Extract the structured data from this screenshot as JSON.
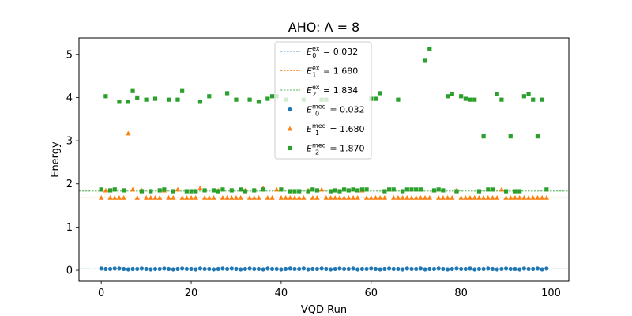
{
  "chart_data": {
    "type": "scatter",
    "title": "AHO: Λ = 8",
    "xlabel": "VQD Run",
    "ylabel": "Energy",
    "xlim": [
      -4.95,
      103.95
    ],
    "ylim": [
      -0.255,
      5.38
    ],
    "xticks": [
      0,
      20,
      40,
      60,
      80,
      100
    ],
    "yticks": [
      0,
      1,
      2,
      3,
      4,
      5
    ],
    "grid": false,
    "legend_position": "top-center",
    "reference_lines": [
      {
        "name": "E0ex",
        "base": "E",
        "sub": "0",
        "sup": "ex",
        "label_value": "= 0.032",
        "y": 0.032,
        "color": "#1f77b4",
        "style": "dashed"
      },
      {
        "name": "E1ex",
        "base": "E",
        "sub": "1",
        "sup": "ex",
        "label_value": "= 1.680",
        "y": 1.68,
        "color": "#ff7f0e",
        "style": "dashed"
      },
      {
        "name": "E2ex",
        "base": "E",
        "sub": "2",
        "sup": "ex",
        "label_value": "= 1.834",
        "y": 1.834,
        "color": "#2ca02c",
        "style": "dashed"
      }
    ],
    "series": [
      {
        "name": "E0med",
        "base": "E",
        "sub": "0",
        "sup": "med",
        "label_value": "= 0.032",
        "marker": "circle",
        "color": "#1f77b4",
        "x": [
          0,
          1,
          2,
          3,
          4,
          5,
          6,
          7,
          8,
          9,
          10,
          11,
          12,
          13,
          14,
          15,
          16,
          17,
          18,
          19,
          20,
          21,
          22,
          23,
          24,
          25,
          26,
          27,
          28,
          29,
          30,
          31,
          32,
          33,
          34,
          35,
          36,
          37,
          38,
          39,
          40,
          41,
          42,
          43,
          44,
          45,
          46,
          47,
          48,
          49,
          50,
          51,
          52,
          53,
          54,
          55,
          56,
          57,
          58,
          59,
          60,
          61,
          62,
          63,
          64,
          65,
          66,
          67,
          68,
          69,
          70,
          71,
          72,
          73,
          74,
          75,
          76,
          77,
          78,
          79,
          80,
          81,
          82,
          83,
          84,
          85,
          86,
          87,
          88,
          89,
          90,
          91,
          92,
          93,
          94,
          95,
          96,
          97,
          98,
          99
        ],
        "y": [
          0.04,
          0.03,
          0.03,
          0.04,
          0.04,
          0.03,
          0.02,
          0.03,
          0.03,
          0.04,
          0.03,
          0.02,
          0.03,
          0.03,
          0.04,
          0.03,
          0.02,
          0.03,
          0.04,
          0.03,
          0.03,
          0.02,
          0.04,
          0.03,
          0.03,
          0.02,
          0.03,
          0.04,
          0.03,
          0.04,
          0.03,
          0.02,
          0.03,
          0.04,
          0.03,
          0.03,
          0.02,
          0.04,
          0.03,
          0.03,
          0.02,
          0.03,
          0.04,
          0.03,
          0.03,
          0.04,
          0.02,
          0.03,
          0.03,
          0.04,
          0.03,
          0.02,
          0.03,
          0.04,
          0.03,
          0.03,
          0.04,
          0.02,
          0.03,
          0.03,
          0.04,
          0.03,
          0.02,
          0.03,
          0.04,
          0.03,
          0.03,
          0.02,
          0.04,
          0.03,
          0.03,
          0.04,
          0.02,
          0.03,
          0.03,
          0.04,
          0.03,
          0.02,
          0.03,
          0.04,
          0.03,
          0.03,
          0.04,
          0.02,
          0.03,
          0.03,
          0.04,
          0.03,
          0.02,
          0.03,
          0.04,
          0.03,
          0.03,
          0.02,
          0.04,
          0.03,
          0.03,
          0.04,
          0.02,
          0.04
        ]
      },
      {
        "name": "E1med",
        "base": "E",
        "sub": "1",
        "sup": "med",
        "label_value": "= 1.680",
        "marker": "triangle",
        "color": "#ff7f0e",
        "x": [
          0,
          1,
          2,
          3,
          4,
          5,
          6,
          7,
          8,
          9,
          10,
          11,
          12,
          13,
          14,
          15,
          16,
          17,
          18,
          19,
          20,
          21,
          22,
          23,
          24,
          25,
          26,
          27,
          28,
          29,
          30,
          31,
          32,
          33,
          34,
          35,
          36,
          37,
          38,
          39,
          40,
          41,
          42,
          43,
          44,
          45,
          46,
          47,
          48,
          49,
          50,
          51,
          52,
          53,
          54,
          55,
          56,
          57,
          58,
          59,
          60,
          61,
          62,
          63,
          64,
          65,
          66,
          67,
          68,
          69,
          70,
          71,
          72,
          73,
          74,
          75,
          76,
          77,
          78,
          79,
          80,
          81,
          82,
          83,
          84,
          85,
          86,
          87,
          88,
          89,
          90,
          91,
          92,
          93,
          94,
          95,
          96,
          97,
          98,
          99
        ],
        "y": [
          1.68,
          1.85,
          1.68,
          1.68,
          1.68,
          1.68,
          3.17,
          1.87,
          1.68,
          1.85,
          1.68,
          1.68,
          1.68,
          1.68,
          1.85,
          1.68,
          1.68,
          1.87,
          1.68,
          1.68,
          1.68,
          1.68,
          1.9,
          1.68,
          1.68,
          1.68,
          1.85,
          1.68,
          1.68,
          1.68,
          1.68,
          1.68,
          1.85,
          1.68,
          1.68,
          1.68,
          1.9,
          1.68,
          1.68,
          1.87,
          1.68,
          1.68,
          1.68,
          1.68,
          1.68,
          1.68,
          1.85,
          1.68,
          1.68,
          1.87,
          1.68,
          1.68,
          1.68,
          1.68,
          1.68,
          1.68,
          1.68,
          1.68,
          1.85,
          1.68,
          1.68,
          1.68,
          1.68,
          1.68,
          1.87,
          1.68,
          1.68,
          1.68,
          1.68,
          1.68,
          1.68,
          1.68,
          1.68,
          1.68,
          1.85,
          1.68,
          1.68,
          1.68,
          1.68,
          1.85,
          1.68,
          1.68,
          1.68,
          1.68,
          1.68,
          1.68,
          1.68,
          1.68,
          1.68,
          1.87,
          1.68,
          1.68,
          1.68,
          1.68,
          1.68,
          1.68,
          1.68,
          1.68,
          1.68,
          1.68
        ]
      },
      {
        "name": "E2med",
        "base": "E",
        "sub": "2",
        "sup": "med",
        "label_value": "= 1.870",
        "marker": "square",
        "color": "#2ca02c",
        "x": [
          0,
          1,
          2,
          3,
          4,
          5,
          6,
          7,
          8,
          9,
          10,
          11,
          12,
          13,
          14,
          15,
          16,
          17,
          18,
          19,
          20,
          21,
          22,
          23,
          24,
          25,
          26,
          27,
          28,
          29,
          30,
          31,
          32,
          33,
          34,
          35,
          36,
          37,
          38,
          39,
          40,
          41,
          42,
          43,
          44,
          45,
          46,
          47,
          48,
          49,
          50,
          51,
          52,
          53,
          54,
          55,
          56,
          57,
          58,
          59,
          60,
          61,
          62,
          63,
          64,
          65,
          66,
          67,
          68,
          69,
          70,
          71,
          72,
          73,
          74,
          75,
          76,
          77,
          78,
          79,
          80,
          81,
          82,
          83,
          84,
          85,
          86,
          87,
          88,
          89,
          90,
          91,
          92,
          93,
          94,
          95,
          96,
          97,
          98,
          99
        ],
        "y": [
          1.87,
          4.03,
          1.85,
          1.87,
          3.9,
          1.85,
          3.9,
          4.15,
          4.0,
          1.83,
          3.95,
          1.83,
          3.97,
          1.85,
          1.87,
          3.95,
          1.83,
          3.95,
          4.15,
          1.83,
          1.83,
          1.83,
          3.9,
          1.85,
          4.03,
          1.85,
          1.83,
          1.87,
          4.1,
          1.85,
          3.95,
          1.87,
          1.83,
          3.95,
          1.85,
          3.9,
          1.87,
          3.97,
          4.03,
          4.03,
          1.87,
          3.95,
          1.83,
          1.83,
          1.83,
          3.95,
          1.83,
          1.87,
          1.85,
          3.95,
          3.95,
          1.83,
          1.85,
          1.83,
          1.87,
          1.85,
          1.87,
          1.85,
          1.87,
          1.87,
          3.97,
          3.97,
          4.1,
          1.83,
          1.87,
          1.87,
          3.95,
          1.83,
          1.87,
          1.87,
          1.87,
          1.87,
          4.85,
          5.13,
          1.85,
          1.87,
          1.85,
          4.03,
          4.08,
          1.83,
          4.03,
          3.97,
          3.95,
          3.95,
          1.83,
          3.1,
          1.87,
          1.87,
          4.08,
          3.95,
          1.83,
          3.1,
          1.83,
          1.83,
          4.03,
          4.08,
          3.95,
          3.1,
          3.95,
          1.87
        ]
      }
    ]
  }
}
